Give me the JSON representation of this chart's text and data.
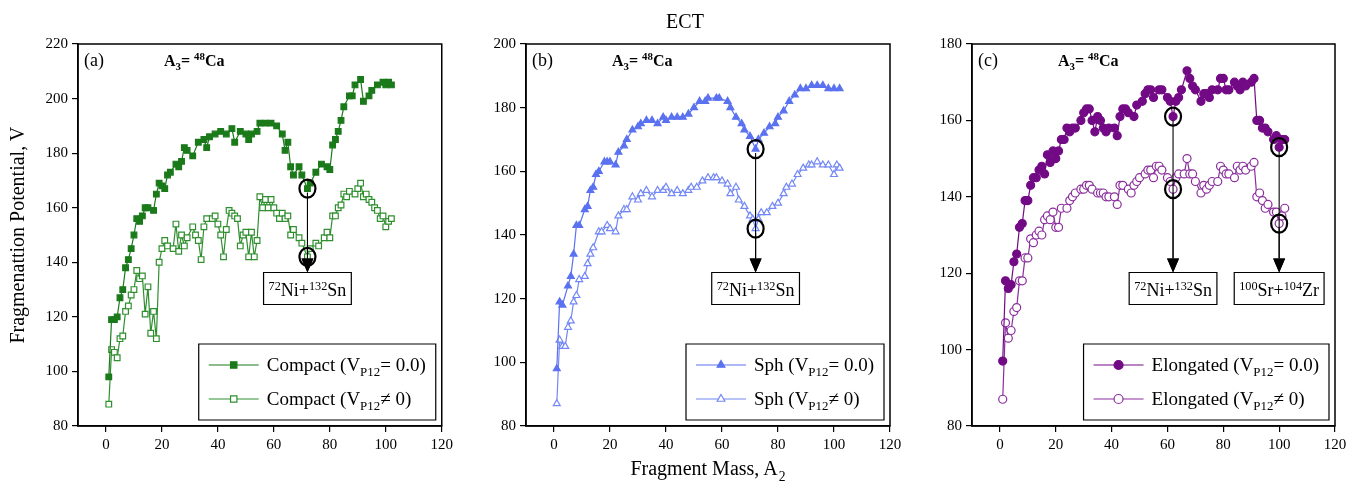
{
  "chart_data": [
    {
      "type": "line",
      "ylabel": "Fragmenattion Potential, V",
      "xlim": [
        -10,
        120
      ],
      "xticks": [
        0,
        20,
        40,
        60,
        80,
        100,
        120
      ],
      "ylim": [
        80,
        220
      ],
      "yticks": [
        80,
        100,
        120,
        140,
        160,
        180,
        200,
        220
      ],
      "legend": "bottom right",
      "marker": "square",
      "annotations": [
        "(a)",
        "A$_{3}$= $^{48}$Ca",
        {
          "text": "$^{72}$Ni+$^{132}$Sn",
          "x": 72,
          "y": 167
        }
      ],
      "series": [
        {
          "name": "Compact (V$_{P12}$= 0.0)",
          "color": "#1a7a1a",
          "x": [
            1,
            2,
            3,
            4,
            5,
            6,
            7,
            8,
            9,
            10,
            11,
            12,
            13,
            14,
            15,
            17,
            18,
            19,
            20,
            21,
            22,
            23,
            25,
            26,
            27,
            28,
            29,
            31,
            33,
            35,
            36,
            37,
            39,
            41,
            43,
            45,
            46,
            48,
            50,
            51,
            52,
            54,
            55,
            57,
            59,
            61,
            63,
            64,
            65,
            66,
            67,
            69,
            70,
            72,
            73,
            75,
            77,
            79,
            80,
            81,
            82,
            83,
            84,
            85,
            87,
            88,
            89,
            91,
            92,
            94,
            95,
            97,
            99,
            100,
            101,
            102
          ],
          "values": [
            98,
            119,
            119,
            120,
            127,
            130,
            138,
            141,
            145,
            150,
            156,
            155,
            157,
            160,
            160,
            159,
            165,
            169,
            168,
            167,
            172,
            173,
            176,
            175,
            177,
            182,
            181,
            179,
            184,
            185,
            182,
            186,
            187,
            188,
            187,
            189,
            184,
            188,
            187,
            185,
            187,
            188,
            191,
            191,
            191,
            190,
            187,
            181,
            184,
            175,
            172,
            175,
            172,
            167,
            169,
            173,
            176,
            175,
            174,
            183,
            185,
            188,
            192,
            197,
            201,
            201,
            205,
            207,
            199,
            201,
            203,
            205,
            206,
            205,
            206,
            205
          ]
        },
        {
          "name": "Compact (V$_{P12}$≠ 0)",
          "color": "#2f8f2f",
          "x": [
            1,
            2,
            3,
            4,
            5,
            6,
            7,
            8,
            9,
            10,
            11,
            12,
            13,
            14,
            15,
            16,
            17,
            18,
            19,
            20,
            21,
            22,
            24,
            25,
            26,
            27,
            28,
            29,
            31,
            32,
            33,
            34,
            35,
            36,
            38,
            39,
            40,
            41,
            42,
            43,
            44,
            45,
            46,
            47,
            48,
            49,
            50,
            51,
            52,
            53,
            54,
            55,
            56,
            57,
            58,
            59,
            60,
            61,
            62,
            63,
            64,
            65,
            66,
            67,
            69,
            70,
            72,
            73,
            75,
            76,
            78,
            79,
            80,
            81,
            82,
            83,
            84,
            85,
            86,
            87,
            89,
            90,
            91,
            92,
            93,
            94,
            95,
            96,
            97,
            98,
            99,
            100,
            101,
            102
          ],
          "values": [
            88,
            108,
            107,
            105,
            112,
            113,
            122,
            124,
            128,
            130,
            137,
            134,
            135,
            121,
            131,
            114,
            122,
            112,
            140,
            145,
            148,
            146,
            145,
            154,
            144,
            150,
            146,
            149,
            153,
            150,
            148,
            141,
            153,
            156,
            156,
            157,
            154,
            150,
            142,
            152,
            159,
            158,
            157,
            156,
            146,
            150,
            151,
            142,
            151,
            142,
            148,
            164,
            160,
            163,
            160,
            163,
            160,
            158,
            156,
            158,
            156,
            157,
            150,
            152,
            149,
            147,
            142,
            145,
            147,
            146,
            149,
            151,
            149,
            157,
            157,
            160,
            161,
            165,
            164,
            166,
            165,
            167,
            169,
            164,
            165,
            163,
            162,
            160,
            159,
            156,
            157,
            153,
            155,
            156
          ]
        }
      ]
    },
    {
      "type": "line",
      "title": "ECT",
      "xlabel": "Fragment Mass, A$_{2}$",
      "xlim": [
        -10,
        120
      ],
      "xticks": [
        0,
        20,
        40,
        60,
        80,
        100,
        120
      ],
      "ylim": [
        80,
        200
      ],
      "yticks": [
        80,
        100,
        120,
        140,
        160,
        180,
        200
      ],
      "legend": "bottom right",
      "marker": "triangle",
      "annotations": [
        "(b)",
        "A$_{3}$= $^{48}$Ca",
        {
          "text": "$^{72}$Ni+$^{132}$Sn",
          "x": 72,
          "y": 167
        }
      ],
      "series": [
        {
          "name": "Sph (V$_{P12}$= 0.0)",
          "color": "#5b72f0",
          "x": [
            1,
            2,
            3,
            5,
            6,
            7,
            8,
            9,
            11,
            12,
            13,
            14,
            15,
            16,
            18,
            19,
            20,
            22,
            23,
            25,
            26,
            28,
            30,
            31,
            33,
            35,
            37,
            39,
            40,
            42,
            44,
            46,
            48,
            50,
            52,
            54,
            55,
            58,
            59,
            62,
            63,
            65,
            67,
            68,
            70,
            72,
            73,
            75,
            77,
            79,
            80,
            82,
            84,
            86,
            88,
            90,
            92,
            94,
            96,
            98,
            100,
            102
          ],
          "values": [
            98,
            119,
            118,
            124,
            127,
            134,
            143,
            143,
            148,
            149,
            154,
            155,
            159,
            160,
            163,
            163,
            163,
            162,
            166,
            168,
            170,
            173,
            174,
            175,
            176,
            176,
            175,
            177,
            176,
            177,
            177,
            177,
            178,
            180,
            182,
            182,
            183,
            183,
            183,
            182,
            180,
            177,
            175,
            173,
            171,
            167,
            170,
            172,
            174,
            175,
            177,
            179,
            182,
            184,
            186,
            186,
            187,
            187,
            187,
            186,
            186,
            186
          ]
        },
        {
          "name": "Sph (V$_{P12}$≠ 0)",
          "color": "#7388f5",
          "x": [
            1,
            2,
            3,
            4,
            5,
            6,
            7,
            8,
            9,
            11,
            12,
            13,
            14,
            16,
            17,
            19,
            20,
            22,
            23,
            25,
            26,
            28,
            30,
            31,
            33,
            35,
            37,
            39,
            40,
            42,
            44,
            46,
            48,
            49,
            51,
            53,
            55,
            57,
            58,
            60,
            62,
            63,
            65,
            66,
            68,
            70,
            71,
            72,
            73,
            74,
            76,
            78,
            80,
            82,
            83,
            85,
            87,
            89,
            91,
            92,
            94,
            96,
            98,
            100,
            101,
            102
          ],
          "values": [
            87,
            107,
            105,
            105,
            111,
            113,
            119,
            121,
            126,
            127,
            131,
            134,
            136,
            141,
            141,
            143,
            142,
            141,
            146,
            148,
            148,
            152,
            151,
            153,
            154,
            152,
            154,
            154,
            155,
            153,
            154,
            153,
            154,
            155,
            155,
            157,
            158,
            158,
            158,
            157,
            156,
            153,
            155,
            151,
            149,
            146,
            145,
            142,
            145,
            147,
            147,
            149,
            150,
            153,
            155,
            156,
            159,
            161,
            162,
            162,
            163,
            162,
            162,
            159,
            162,
            161
          ]
        }
      ]
    },
    {
      "type": "line",
      "xlim": [
        -10,
        120
      ],
      "xticks": [
        0,
        20,
        40,
        60,
        80,
        100,
        120
      ],
      "ylim": [
        80,
        180
      ],
      "yticks": [
        80,
        100,
        120,
        140,
        160,
        180
      ],
      "legend": "bottom right",
      "marker": "circle",
      "annotations": [
        "(c)",
        "A$_{3}$= $^{48}$Ca",
        {
          "text": "$^{72}$Ni+$^{132}$Sn",
          "x": 62,
          "y": 161
        },
        {
          "text": "$^{100}$Sr+$^{104}$Zr",
          "x": 100,
          "y": 153
        }
      ],
      "series": [
        {
          "name": "Elongated (V$_{P12}$= 0.0)",
          "color": "#730a85",
          "x": [
            1,
            2,
            3,
            4,
            5,
            6,
            7,
            8,
            9,
            10,
            11,
            12,
            13,
            14,
            15,
            16,
            17,
            18,
            19,
            20,
            21,
            22,
            23,
            24,
            25,
            26,
            27,
            29,
            30,
            31,
            32,
            33,
            34,
            35,
            36,
            37,
            38,
            39,
            41,
            42,
            43,
            44,
            45,
            46,
            48,
            49,
            51,
            52,
            53,
            54,
            55,
            57,
            58,
            60,
            61,
            62,
            63,
            64,
            65,
            67,
            68,
            69,
            70,
            72,
            73,
            74,
            75,
            76,
            78,
            79,
            80,
            81,
            82,
            84,
            85,
            86,
            87,
            88,
            90,
            91,
            92,
            93,
            94,
            95,
            96,
            98,
            99,
            100,
            101,
            102
          ],
          "values": [
            97,
            118,
            116,
            117,
            123,
            125,
            132,
            133,
            139,
            139,
            143,
            145,
            145,
            147,
            148,
            146,
            151,
            149,
            152,
            150,
            152,
            155,
            155,
            158,
            157,
            158,
            158,
            160,
            162,
            163,
            163,
            160,
            157,
            161,
            160,
            158,
            157,
            158,
            158,
            156,
            161,
            163,
            163,
            162,
            161,
            164,
            165,
            167,
            168,
            168,
            166,
            168,
            168,
            166,
            165,
            161,
            165,
            166,
            168,
            173,
            171,
            169,
            168,
            165,
            167,
            167,
            166,
            168,
            168,
            171,
            171,
            168,
            168,
            170,
            169,
            168,
            170,
            169,
            170,
            171,
            160,
            160,
            158,
            158,
            157,
            155,
            156,
            153,
            155,
            155
          ]
        },
        {
          "name": "Elongated (V$_{P12}$≠ 0)",
          "color": "#8a2e9c",
          "x": [
            1,
            2,
            3,
            4,
            5,
            6,
            7,
            8,
            9,
            10,
            11,
            12,
            13,
            14,
            15,
            16,
            17,
            18,
            19,
            20,
            21,
            22,
            24,
            25,
            26,
            27,
            29,
            30,
            31,
            32,
            33,
            35,
            36,
            37,
            38,
            39,
            41,
            42,
            43,
            44,
            46,
            47,
            48,
            49,
            50,
            52,
            53,
            54,
            55,
            56,
            57,
            58,
            60,
            61,
            62,
            63,
            64,
            66,
            67,
            68,
            69,
            70,
            72,
            73,
            74,
            75,
            76,
            78,
            79,
            80,
            81,
            82,
            84,
            85,
            86,
            87,
            88,
            90,
            91,
            92,
            93,
            94,
            95,
            96,
            98,
            99,
            100,
            101,
            102
          ],
          "values": [
            87,
            107,
            103,
            105,
            110,
            111,
            118,
            118,
            124,
            124,
            129,
            128,
            130,
            131,
            130,
            134,
            135,
            134,
            136,
            132,
            132,
            137,
            137,
            139,
            140,
            141,
            142,
            142,
            143,
            143,
            142,
            141,
            141,
            141,
            140,
            140,
            140,
            138,
            143,
            143,
            142,
            141,
            143,
            144,
            145,
            146,
            147,
            147,
            145,
            148,
            148,
            147,
            145,
            144,
            142,
            145,
            146,
            146,
            150,
            146,
            146,
            144,
            141,
            143,
            142,
            143,
            144,
            144,
            148,
            147,
            146,
            146,
            145,
            148,
            147,
            148,
            147,
            148,
            149,
            140,
            141,
            139,
            137,
            138,
            136,
            136,
            133,
            135,
            137
          ]
        }
      ]
    }
  ]
}
